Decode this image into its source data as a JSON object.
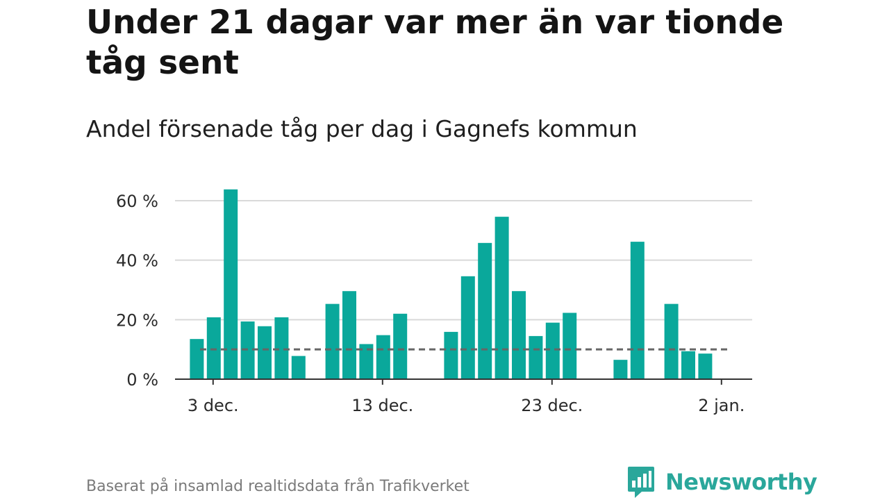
{
  "title": "Under 21 dagar var mer än var tionde tåg sent",
  "subtitle": "Andel försenade tåg per dag i Gagnefs kommun",
  "footnote": "Baserat på insamlad realtidsdata från Trafikverket",
  "brand": {
    "name": "Newsworthy",
    "icon": "newsworthy-logo-icon",
    "color": "#2aa79b"
  },
  "colors": {
    "bar": "#0aa89b",
    "grid": "#d9d9d9",
    "axis": "#333333",
    "reference": "#666666"
  },
  "chart_data": {
    "type": "bar",
    "title": "Under 21 dagar var mer än var tionde tåg sent",
    "subtitle": "Andel försenade tåg per dag i Gagnefs kommun",
    "x_start": "2023-12-01",
    "x_end": "2024-01-02",
    "x_ticks": [
      {
        "date": "2023-12-03",
        "label": "3 dec."
      },
      {
        "date": "2023-12-13",
        "label": "13 dec."
      },
      {
        "date": "2023-12-23",
        "label": "23 dec."
      },
      {
        "date": "2024-01-02",
        "label": "2 jan."
      }
    ],
    "y_ticks": [
      {
        "value": 0,
        "label": "0 %"
      },
      {
        "value": 20,
        "label": "20 %"
      },
      {
        "value": 40,
        "label": "40 %"
      },
      {
        "value": 60,
        "label": "60 %"
      }
    ],
    "ylim": [
      0,
      60
    ],
    "grid": true,
    "reference_line": {
      "value": 10,
      "style": "dashed"
    },
    "x": [
      "2023-12-02",
      "2023-12-03",
      "2023-12-04",
      "2023-12-05",
      "2023-12-06",
      "2023-12-07",
      "2023-12-08",
      "2023-12-09",
      "2023-12-10",
      "2023-12-11",
      "2023-12-12",
      "2023-12-13",
      "2023-12-14",
      "2023-12-15",
      "2023-12-16",
      "2023-12-17",
      "2023-12-18",
      "2023-12-19",
      "2023-12-20",
      "2023-12-21",
      "2023-12-22",
      "2023-12-23",
      "2023-12-24",
      "2023-12-25",
      "2023-12-26",
      "2023-12-27",
      "2023-12-28",
      "2023-12-29",
      "2023-12-30",
      "2023-12-31",
      "2024-01-01"
    ],
    "values": [
      13.5,
      20.8,
      63.8,
      19.4,
      17.8,
      20.8,
      7.8,
      null,
      25.3,
      29.6,
      11.8,
      14.8,
      22.0,
      null,
      null,
      15.9,
      34.6,
      45.8,
      54.6,
      29.6,
      14.5,
      19.0,
      22.3,
      null,
      null,
      6.5,
      46.2,
      null,
      25.3,
      9.4,
      8.6
    ]
  }
}
